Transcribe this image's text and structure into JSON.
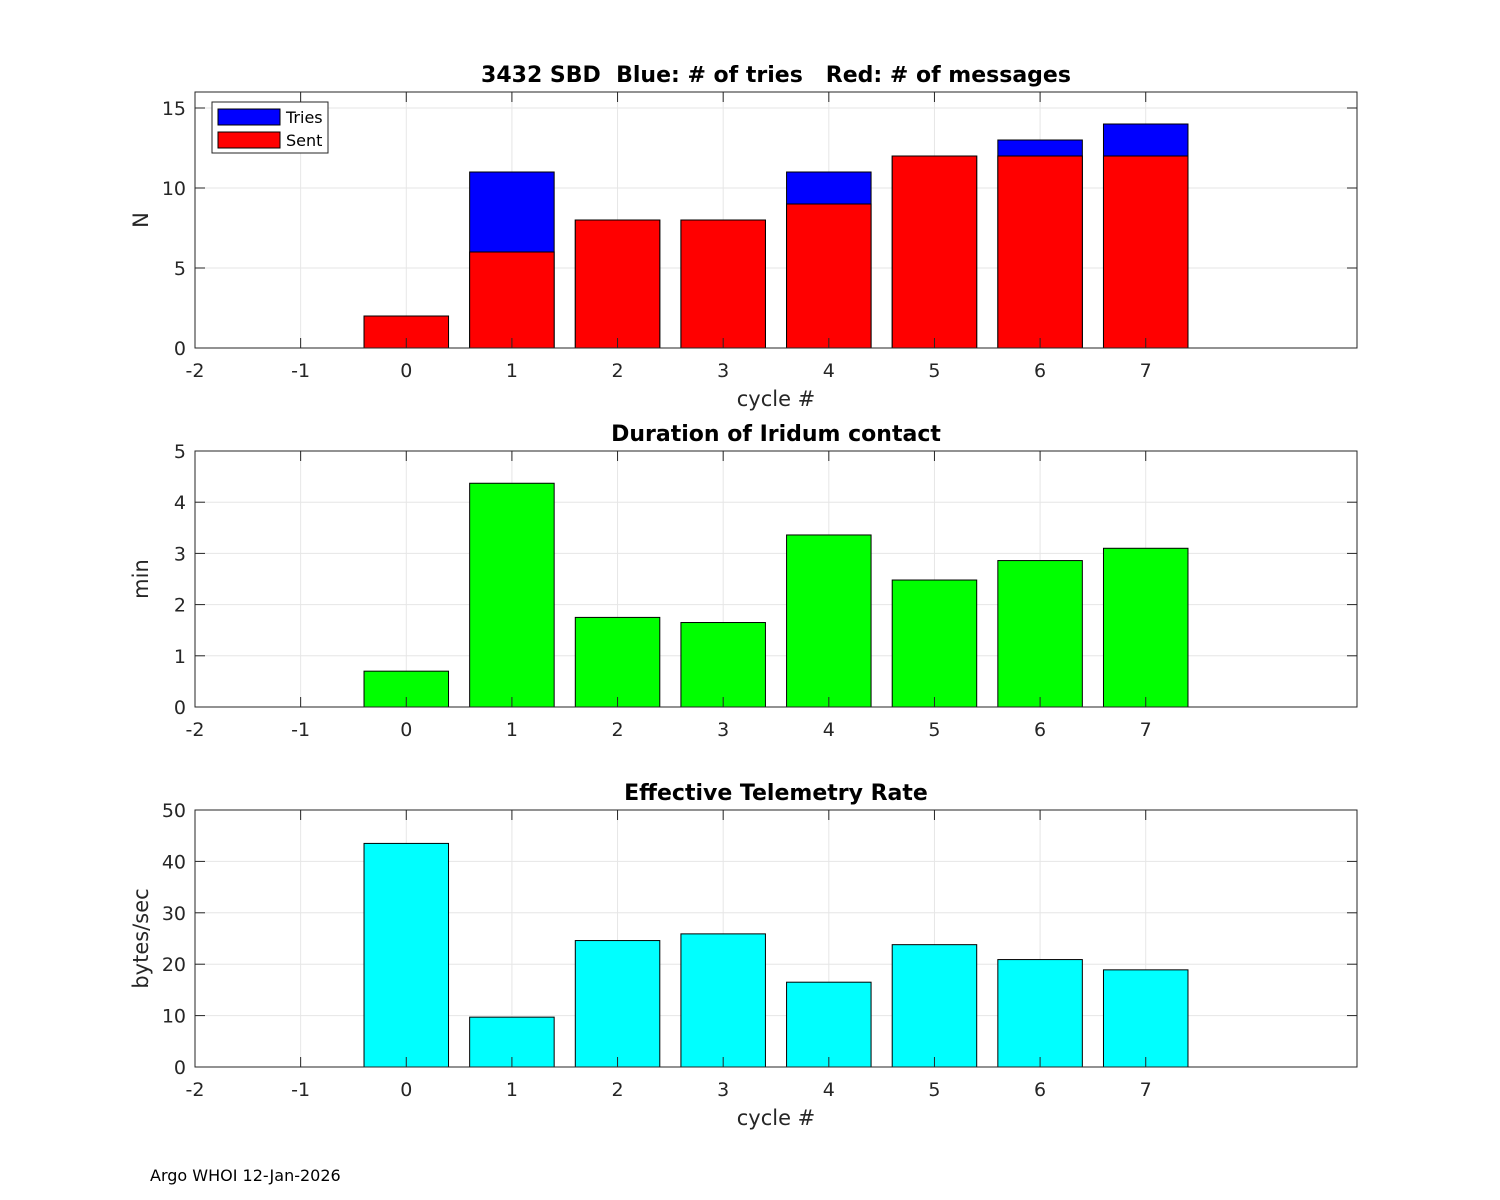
{
  "footer": {
    "text": "Argo WHOI 12-Jan-2026"
  },
  "chart_data": [
    {
      "type": "bar",
      "id": "sbd",
      "title": "3432 SBD  Blue: # of tries   Red: # of messages",
      "xlabel": "cycle #",
      "ylabel": "N",
      "xlim": [
        -2,
        9
      ],
      "ylim": [
        0,
        16
      ],
      "xticks": [
        "-2",
        "-1",
        "0",
        "1",
        "2",
        "3",
        "4",
        "5",
        "6",
        "7"
      ],
      "yticks": [
        "0",
        "5",
        "10",
        "15"
      ],
      "grid": true,
      "legend": {
        "location": "top-left",
        "entries": [
          "Tries",
          "Sent"
        ]
      },
      "x": [
        0,
        1,
        2,
        3,
        4,
        5,
        6,
        7
      ],
      "series": [
        {
          "name": "Tries",
          "color": "#0000ff",
          "values": [
            2,
            11,
            8,
            8,
            11,
            12,
            13,
            14
          ]
        },
        {
          "name": "Sent",
          "color": "#ff0000",
          "values": [
            2,
            6,
            8,
            8,
            9,
            12,
            12,
            12
          ]
        }
      ]
    },
    {
      "type": "bar",
      "id": "duration",
      "title": "Duration of Iridum contact",
      "xlabel": "",
      "ylabel": "min",
      "xlim": [
        -2,
        9
      ],
      "ylim": [
        0,
        5
      ],
      "xticks": [
        "-2",
        "-1",
        "0",
        "1",
        "2",
        "3",
        "4",
        "5",
        "6",
        "7"
      ],
      "yticks": [
        "0",
        "1",
        "2",
        "3",
        "4",
        "5"
      ],
      "grid": true,
      "x": [
        0,
        1,
        2,
        3,
        4,
        5,
        6,
        7
      ],
      "series": [
        {
          "name": "Duration",
          "color": "#00ff00",
          "values": [
            0.7,
            4.37,
            1.75,
            1.65,
            3.36,
            2.48,
            2.86,
            3.1
          ]
        }
      ]
    },
    {
      "type": "bar",
      "id": "rate",
      "title": "Effective Telemetry Rate",
      "xlabel": "cycle #",
      "ylabel": "bytes/sec",
      "xlim": [
        -2,
        9
      ],
      "ylim": [
        0,
        50
      ],
      "xticks": [
        "-2",
        "-1",
        "0",
        "1",
        "2",
        "3",
        "4",
        "5",
        "6",
        "7"
      ],
      "yticks": [
        "0",
        "10",
        "20",
        "30",
        "40",
        "50"
      ],
      "grid": true,
      "x": [
        0,
        1,
        2,
        3,
        4,
        5,
        6,
        7
      ],
      "series": [
        {
          "name": "Rate",
          "color": "#00ffff",
          "values": [
            43.5,
            9.7,
            24.6,
            25.9,
            16.5,
            23.8,
            20.9,
            18.9
          ]
        }
      ]
    }
  ]
}
